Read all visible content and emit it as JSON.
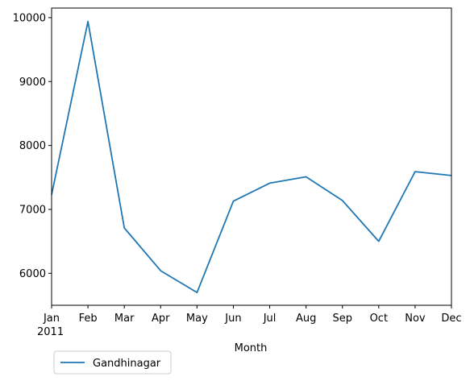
{
  "chart_data": {
    "type": "line",
    "title": "",
    "xlabel": "Month",
    "ylabel": "",
    "categories": [
      "Jan",
      "Feb",
      "Mar",
      "Apr",
      "May",
      "Jun",
      "Jul",
      "Aug",
      "Sep",
      "Oct",
      "Nov",
      "Dec"
    ],
    "year_label": "2011",
    "y_ticks": [
      6000,
      7000,
      8000,
      9000,
      10000
    ],
    "ylim": [
      5500,
      10150
    ],
    "grid": false,
    "legend_position": "below-left",
    "series": [
      {
        "name": "Gandhinagar",
        "color": "#1f77b4",
        "values": [
          7230,
          9940,
          6710,
          6040,
          5700,
          7130,
          7410,
          7510,
          7140,
          6500,
          7590,
          7530
        ]
      }
    ]
  }
}
